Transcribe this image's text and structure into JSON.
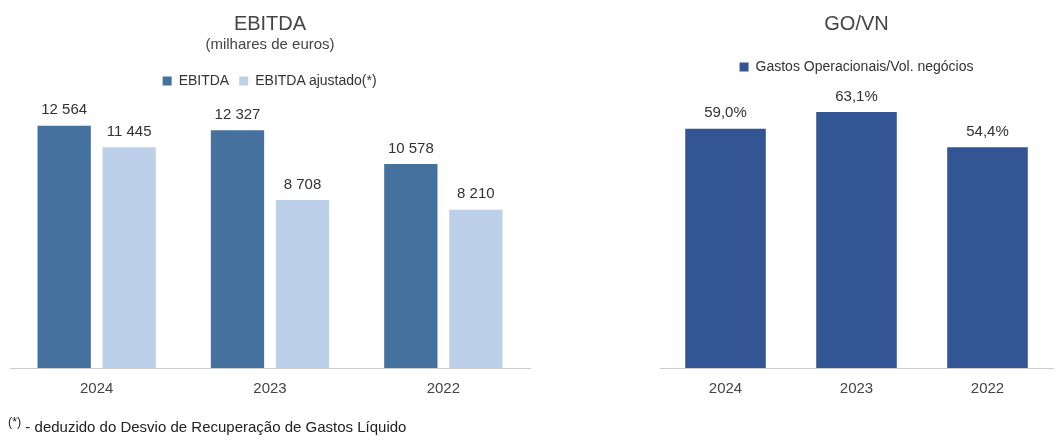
{
  "chart_data": [
    {
      "type": "bar",
      "title": "EBITDA",
      "subtitle": "(milhares de euros)",
      "categories": [
        "2024",
        "2023",
        "2022"
      ],
      "legend": "top",
      "grid": false,
      "tick_labels": "x",
      "series": [
        {
          "name": "EBITDA",
          "color": "#44719e",
          "values": [
            12564,
            12327,
            10578
          ],
          "value_labels": [
            "12 564",
            "12 327",
            "10 578"
          ]
        },
        {
          "name": "EBITDA ajustado(*)",
          "color": "#bdd0ea",
          "values": [
            11445,
            8708,
            8210
          ],
          "value_labels": [
            "11 445",
            "8 708",
            "8 210"
          ]
        }
      ],
      "annotations": [
        "$^{(*)}$ - deduzido do Desvio de Recuperação de Gastos Líquido"
      ]
    },
    {
      "type": "bar",
      "title": "GO/VN",
      "categories": [
        "2024",
        "2023",
        "2022"
      ],
      "legend": "top",
      "grid": false,
      "tick_labels": "x",
      "series": [
        {
          "name": "Gastos Operacionais/Vol. negócios",
          "color": "#335593",
          "values": [
            59.0,
            63.1,
            54.4
          ],
          "value_labels": [
            "59,0%",
            "63,1%",
            "54,4%"
          ]
        }
      ]
    }
  ]
}
